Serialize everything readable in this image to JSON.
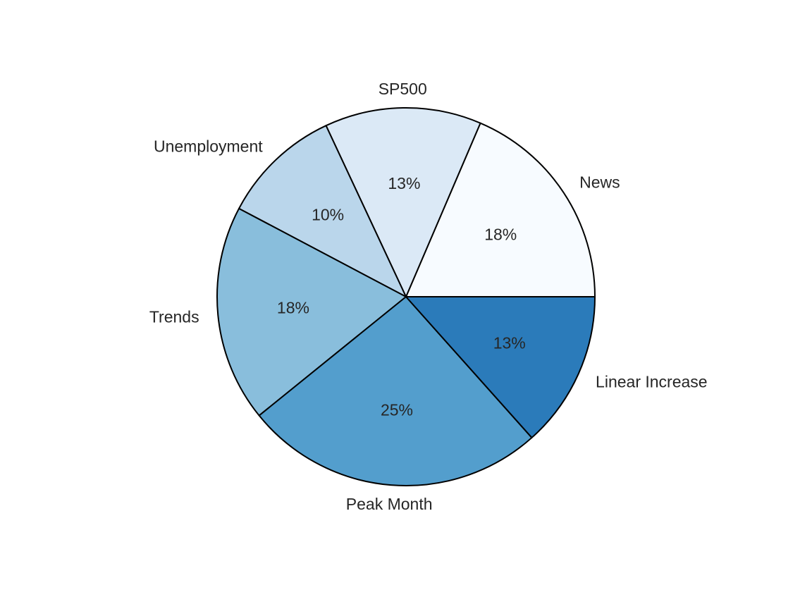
{
  "chart_data": {
    "type": "pie",
    "categories": [
      "News",
      "SP500",
      "Unemployment",
      "Trends",
      "Peak Month",
      "Linear Increase"
    ],
    "values": [
      18,
      13,
      10,
      18,
      25,
      13
    ],
    "value_labels": [
      "18%",
      "13%",
      "10%",
      "18%",
      "25%",
      "13%"
    ],
    "colors": [
      "#f7fbff",
      "#dbe9f6",
      "#bad6eb",
      "#89bedc",
      "#539ecd",
      "#2b7bba"
    ],
    "edge_color": "#000000",
    "start_angle_deg": 0,
    "direction": "counterclockwise",
    "title": "",
    "legend": "none"
  }
}
